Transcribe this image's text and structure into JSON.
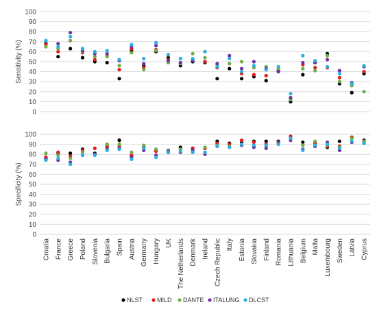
{
  "chart_data": [
    {
      "type": "scatter",
      "ylabel": "Sensitivity (%)",
      "ylim": [
        0,
        100
      ],
      "yticks": [
        0,
        10,
        20,
        30,
        40,
        50,
        60,
        70,
        80,
        90,
        100
      ],
      "grid": true
    },
    {
      "type": "scatter",
      "ylabel": "Specificity (%)",
      "ylim": [
        0,
        100
      ],
      "yticks": [
        0,
        10,
        20,
        30,
        40,
        50,
        60,
        70,
        80,
        90,
        100
      ],
      "grid": true
    }
  ],
  "categories": [
    "Croatia",
    "France",
    "Greece",
    "Poland",
    "Slovenia",
    "Bulgaria",
    "Spain",
    "Austria",
    "Germany",
    "Hungary",
    "UK",
    "The Netherlands",
    "Denmark",
    "Ireland",
    "Czech Republic",
    "Italy",
    "Estonia",
    "Slovakia",
    "Finland",
    "Romania",
    "Lithuania",
    "Belgium",
    "Malta",
    "Luxembourg",
    "Sweden",
    "Latvia",
    "Cyprus"
  ],
  "series": [
    {
      "name": "NLST",
      "color": "#000000",
      "sensitivity": [
        68,
        55,
        63,
        54,
        50,
        49,
        33,
        61,
        46,
        60,
        54,
        46,
        50,
        49,
        33,
        43,
        33,
        35,
        31,
        41,
        10,
        37,
        49,
        58,
        28,
        19,
        38
      ],
      "specificity": [
        76,
        81,
        81,
        85,
        81,
        88,
        94,
        78,
        87,
        84,
        82,
        87,
        86,
        86,
        93,
        91,
        92,
        93,
        93,
        93,
        98,
        92,
        88,
        87,
        93,
        97,
        94
      ]
    },
    {
      "name": "MILD",
      "color": "#e21a1a",
      "sensitivity": [
        67,
        60,
        71,
        59,
        52,
        56,
        42,
        63,
        44,
        62,
        52,
        48,
        52,
        50,
        44,
        48,
        38,
        37,
        36,
        42,
        14,
        47,
        44,
        44,
        34,
        27,
        40
      ],
      "specificity": [
        77,
        82,
        78,
        84,
        86,
        87,
        88,
        79,
        88,
        83,
        84,
        85,
        86,
        86,
        91,
        90,
        94,
        92,
        90,
        91,
        98,
        89,
        91,
        88,
        88,
        97,
        93
      ]
    },
    {
      "name": "DANTE",
      "color": "#70ad47",
      "sensitivity": [
        65,
        63,
        71,
        60,
        55,
        55,
        46,
        59,
        42,
        61,
        49,
        48,
        58,
        54,
        47,
        48,
        50,
        44,
        45,
        43,
        12,
        43,
        41,
        56,
        30,
        26,
        20
      ],
      "specificity": [
        81,
        79,
        76,
        82,
        80,
        90,
        90,
        82,
        89,
        85,
        84,
        85,
        82,
        87,
        89,
        88,
        89,
        88,
        88,
        91,
        96,
        89,
        93,
        89,
        87,
        96,
        93
      ]
    },
    {
      "name": "ITALUNG",
      "color": "#7030a0",
      "sensitivity": [
        71,
        68,
        79,
        61,
        58,
        58,
        51,
        65,
        48,
        66,
        51,
        49,
        51,
        60,
        48,
        56,
        43,
        50,
        43,
        40,
        14,
        49,
        49,
        52,
        41,
        29,
        45
      ],
      "specificity": [
        75,
        74,
        72,
        79,
        80,
        85,
        86,
        77,
        84,
        79,
        83,
        82,
        84,
        80,
        88,
        87,
        89,
        87,
        86,
        92,
        94,
        85,
        88,
        92,
        84,
        92,
        91
      ]
    },
    {
      "name": "DLCST",
      "color": "#2ab0e0",
      "sensitivity": [
        71,
        65,
        75,
        63,
        60,
        61,
        52,
        67,
        53,
        69,
        57,
        53,
        53,
        60,
        45,
        53,
        40,
        46,
        42,
        45,
        18,
        56,
        51,
        45,
        38,
        28,
        46
      ],
      "specificity": [
        74,
        76,
        70,
        79,
        79,
        84,
        85,
        75,
        86,
        77,
        82,
        83,
        82,
        82,
        88,
        87,
        90,
        89,
        89,
        90,
        96,
        84,
        89,
        90,
        86,
        93,
        91
      ]
    }
  ],
  "legend": {
    "placement": "bottom-center",
    "entries": [
      "NLST",
      "MILD",
      "DANTE",
      "ITALUNG",
      "DLCST"
    ]
  }
}
